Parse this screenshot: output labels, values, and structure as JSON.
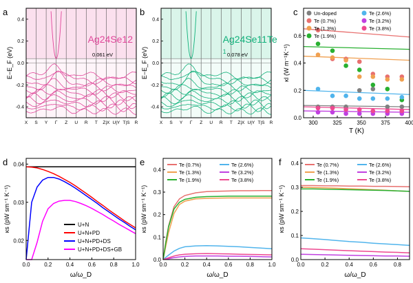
{
  "chart_data": [
    {
      "panel": "a",
      "type": "line",
      "title": "Ag24Se12",
      "ylabel": "E−E_F (eV)",
      "ylim": [
        -0.5,
        0.5
      ],
      "yticks": [
        "0.4",
        "0.2",
        "0.0",
        "-0.2",
        "-0.4"
      ],
      "xticks": [
        "X",
        "S",
        "Y",
        "Γ",
        "Z",
        "U",
        "R",
        "T",
        "Z|X",
        "U|Y",
        "T|S",
        "R"
      ],
      "annotation": "0.061 eV",
      "color": "#e0469a",
      "shade": "#fbe0ee"
    },
    {
      "panel": "b",
      "type": "line",
      "title": "Ag24Se11Te",
      "title_sub": "1",
      "ylabel": "E−E_F (eV)",
      "ylim": [
        -0.5,
        0.5
      ],
      "yticks": [
        "0.4",
        "0.2",
        "0.0",
        "-0.2",
        "-0.4"
      ],
      "xticks": [
        "X",
        "S",
        "Y",
        "Γ",
        "Z",
        "U",
        "R",
        "T",
        "Z|X",
        "U|Y",
        "T|S",
        "R"
      ],
      "annotation": "0.078 eV",
      "color": "#10b07a",
      "shade": "#daf5ea"
    },
    {
      "panel": "c",
      "type": "scatter",
      "xlabel": "T (K)",
      "ylabel": "κl (W m⁻¹K⁻¹)",
      "xlim": [
        290,
        400
      ],
      "ylim": [
        0,
        0.8
      ],
      "xticks": [
        "300",
        "325",
        "350",
        "375",
        "400"
      ],
      "yticks": [
        "0.0",
        "0.2",
        "0.4",
        "0.6"
      ],
      "x": [
        305,
        320,
        334,
        348,
        362,
        377,
        392
      ],
      "series": [
        {
          "name": "Un-doped",
          "color": "#808080",
          "values": [
            0.08,
            0.08,
            0.08,
            0.2,
            0.21,
            0.08,
            0.08
          ]
        },
        {
          "name": "Te (0.7%)",
          "color": "#e8706f",
          "values": [
            0.64,
            0.43,
            0.43,
            0.41,
            0.32,
            0.3,
            0.3
          ]
        },
        {
          "name": "Te (1.3%)",
          "color": "#f0a050",
          "values": [
            0.46,
            0.44,
            0.42,
            0.3,
            0.3,
            0.28,
            0.28
          ]
        },
        {
          "name": "Te (1.9%)",
          "color": "#28b030",
          "values": [
            0.54,
            0.49,
            0.38,
            0.35,
            0.24,
            0.21,
            0.13
          ]
        },
        {
          "name": "Te (2.6%)",
          "color": "#50b4ec",
          "values": [
            0.21,
            0.16,
            0.16,
            0.14,
            0.14,
            0.14,
            0.15
          ]
        },
        {
          "name": "Te (3.2%)",
          "color": "#c040e0",
          "values": [
            0.04,
            0.04,
            0.03,
            0.03,
            0.03,
            0.03,
            0.03
          ]
        },
        {
          "name": "Te (3.8%)",
          "color": "#ee4890",
          "values": [
            0.07,
            0.07,
            0.06,
            0.06,
            0.05,
            0.05,
            0.05
          ]
        }
      ],
      "fits": [
        {
          "color": "#e8706f",
          "y": [
            0.65,
            0.59
          ]
        },
        {
          "color": "#f0a050",
          "y": [
            0.45,
            0.42
          ]
        },
        {
          "color": "#28b030",
          "y": [
            0.52,
            0.5
          ]
        },
        {
          "color": "#50b4ec",
          "y": [
            0.2,
            0.17
          ]
        },
        {
          "color": "#c040e0",
          "y": [
            0.05,
            0.04
          ]
        },
        {
          "color": "#ee4890",
          "y": [
            0.08,
            0.06
          ]
        },
        {
          "color": "#808080",
          "y": [
            0.09,
            0.08
          ]
        }
      ]
    },
    {
      "panel": "d",
      "type": "line",
      "xlabel": "ω/ω_D",
      "ylabel": "κs (pW sm⁻¹ K⁻¹)",
      "xlim": [
        0,
        1.0
      ],
      "ylim": [
        0.015,
        0.0415
      ],
      "xticks": [
        "0.0",
        "0.2",
        "0.4",
        "0.6",
        "0.8",
        "1.0"
      ],
      "yticks": [
        "0.04",
        "0.03",
        "0.02"
      ],
      "x": [
        0,
        0.05,
        0.1,
        0.15,
        0.2,
        0.25,
        0.3,
        0.35,
        0.4,
        0.45,
        0.5,
        0.55,
        0.6,
        0.65,
        0.7,
        0.75,
        0.8,
        0.85,
        0.9,
        0.95,
        1.0
      ],
      "series": [
        {
          "name": "U+N",
          "color": "#000000",
          "values": [
            0.0393,
            0.0393,
            0.0393,
            0.0393,
            0.0393,
            0.0393,
            0.0393,
            0.0393,
            0.0393,
            0.0393,
            0.0393,
            0.0393,
            0.0393,
            0.0393,
            0.0393,
            0.0393,
            0.0393,
            0.0393,
            0.0393,
            0.0393,
            0.0393
          ]
        },
        {
          "name": "U+N+PD",
          "color": "#ff0000",
          "values": [
            0.0393,
            0.0392,
            0.039,
            0.0386,
            0.0381,
            0.0375,
            0.0368,
            0.036,
            0.0352,
            0.0343,
            0.0333,
            0.0323,
            0.0313,
            0.0302,
            0.0292,
            0.0281,
            0.0271,
            0.0261,
            0.0251,
            0.0242,
            0.0233
          ]
        },
        {
          "name": "U+N+PD+DS",
          "color": "#0000ff",
          "values": [
            0.015,
            0.03,
            0.034,
            0.0358,
            0.0365,
            0.0365,
            0.0361,
            0.0354,
            0.0346,
            0.0337,
            0.0327,
            0.0317,
            0.0307,
            0.0297,
            0.0286,
            0.0276,
            0.0266,
            0.0256,
            0.0247,
            0.0237,
            0.0228
          ]
        },
        {
          "name": "U+N+PD+DS+GB",
          "color": "#ff00ff",
          "values": [
            0.015,
            0.015,
            0.0195,
            0.025,
            0.0283,
            0.0297,
            0.0303,
            0.0305,
            0.0305,
            0.0302,
            0.0297,
            0.0291,
            0.0284,
            0.0276,
            0.0268,
            0.0259,
            0.0251,
            0.0242,
            0.0234,
            0.0226,
            0.0218
          ]
        }
      ]
    },
    {
      "panel": "e",
      "type": "line",
      "xlabel": "ω/ω_D",
      "ylabel": "κs (pW sm⁻¹ K⁻¹)",
      "xlim": [
        0,
        1.0
      ],
      "ylim": [
        0,
        0.45
      ],
      "xticks": [
        "0.0",
        "0.2",
        "0.4",
        "0.6",
        "0.8",
        "1.0"
      ],
      "yticks": [
        "0.0",
        "0.1",
        "0.2",
        "0.3",
        "0.4"
      ],
      "x": [
        0,
        0.025,
        0.05,
        0.1,
        0.15,
        0.2,
        0.3,
        0.4,
        0.5,
        0.6,
        0.7,
        0.8,
        0.9,
        1.0
      ],
      "series": [
        {
          "name": "Te (0.7%)",
          "color": "#e8706f",
          "values": [
            0,
            0.08,
            0.15,
            0.235,
            0.27,
            0.285,
            0.297,
            0.302,
            0.304,
            0.305,
            0.306,
            0.306,
            0.307,
            0.307
          ]
        },
        {
          "name": "Te (1.3%)",
          "color": "#f0a050",
          "values": [
            0,
            0.06,
            0.12,
            0.205,
            0.245,
            0.26,
            0.27,
            0.272,
            0.273,
            0.274,
            0.274,
            0.274,
            0.274,
            0.274
          ]
        },
        {
          "name": "Te (1.9%)",
          "color": "#28b030",
          "values": [
            0,
            0.075,
            0.145,
            0.225,
            0.255,
            0.268,
            0.277,
            0.28,
            0.281,
            0.282,
            0.282,
            0.282,
            0.282,
            0.282
          ]
        },
        {
          "name": "Te (2.6%)",
          "color": "#50b4ec",
          "values": [
            0,
            0.01,
            0.02,
            0.038,
            0.05,
            0.057,
            0.061,
            0.062,
            0.061,
            0.059,
            0.057,
            0.054,
            0.051,
            0.048
          ]
        },
        {
          "name": "Te (3.2%)",
          "color": "#c040e0",
          "values": [
            0,
            0.002,
            0.004,
            0.009,
            0.012,
            0.014,
            0.016,
            0.016,
            0.016,
            0.015,
            0.015,
            0.014,
            0.013,
            0.012
          ]
        },
        {
          "name": "Te (3.8%)",
          "color": "#ee4890",
          "values": [
            0,
            0.004,
            0.008,
            0.016,
            0.021,
            0.024,
            0.026,
            0.027,
            0.026,
            0.025,
            0.024,
            0.023,
            0.022,
            0.021
          ]
        }
      ]
    },
    {
      "panel": "f",
      "type": "line",
      "xlabel": "ω/ω_D",
      "ylabel": "κs (pW sm⁻¹ K⁻¹)",
      "xlim": [
        0,
        0.9
      ],
      "ylim": [
        0,
        0.42
      ],
      "xticks": [
        "0.0",
        "0.2",
        "0.4",
        "0.6",
        "0.8"
      ],
      "yticks": [
        "0.0",
        "0.1",
        "0.2",
        "0.3",
        "0.4"
      ],
      "x": [
        0,
        0.1,
        0.2,
        0.3,
        0.4,
        0.5,
        0.6,
        0.7,
        0.8,
        0.9
      ],
      "series": [
        {
          "name": "Te (0.7%)",
          "color": "#e8706f",
          "values": [
            0.307,
            0.307,
            0.306,
            0.306,
            0.305,
            0.305,
            0.304,
            0.304,
            0.303,
            0.302
          ]
        },
        {
          "name": "Te (1.3%)",
          "color": "#f0a050",
          "values": [
            0.3,
            0.299,
            0.298,
            0.296,
            0.294,
            0.292,
            0.29,
            0.288,
            0.285,
            0.283
          ]
        },
        {
          "name": "Te (1.9%)",
          "color": "#28b030",
          "values": [
            0.293,
            0.293,
            0.292,
            0.291,
            0.29,
            0.289,
            0.288,
            0.287,
            0.285,
            0.283
          ]
        },
        {
          "name": "Te (2.6%)",
          "color": "#50b4ec",
          "values": [
            0.09,
            0.087,
            0.083,
            0.079,
            0.075,
            0.072,
            0.068,
            0.065,
            0.062,
            0.059
          ]
        },
        {
          "name": "Te (3.2%)",
          "color": "#c040e0",
          "values": [
            0.022,
            0.021,
            0.02,
            0.019,
            0.018,
            0.017,
            0.016,
            0.015,
            0.015,
            0.014
          ]
        },
        {
          "name": "Te (3.8%)",
          "color": "#ee4890",
          "values": [
            0.045,
            0.043,
            0.041,
            0.039,
            0.037,
            0.035,
            0.033,
            0.031,
            0.03,
            0.028
          ]
        }
      ]
    }
  ],
  "panel_labels": [
    "a",
    "b",
    "c",
    "d",
    "e",
    "f"
  ]
}
